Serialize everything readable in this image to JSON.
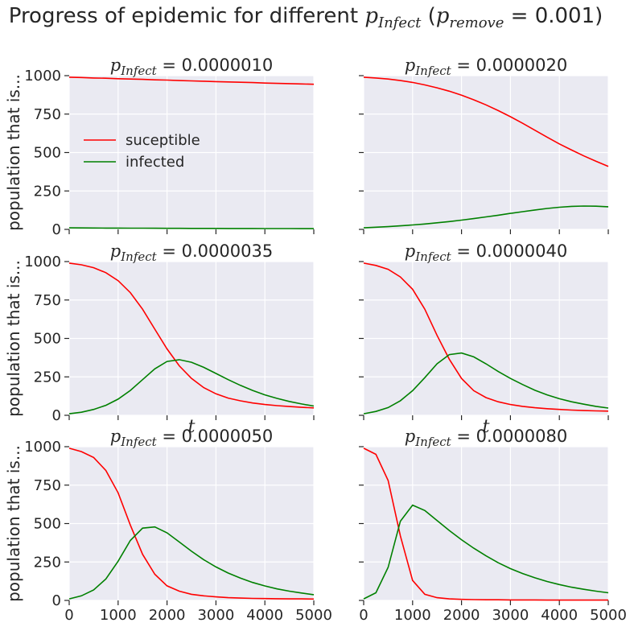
{
  "chart_data": {
    "type": "line",
    "title": {
      "prefix": "Progress of epidemic for different ",
      "var1": "p",
      "var1_sub": "Infect",
      "mid": " (",
      "var2": "p",
      "var2_sub": "remove",
      "suffix": " = 0.001)"
    },
    "xlabel": "t",
    "ylabel": "population that is...",
    "xlim": [
      0,
      5000
    ],
    "ylim": [
      0,
      1000
    ],
    "x_ticks": [
      "0",
      "1000",
      "2000",
      "3000",
      "4000",
      "5000"
    ],
    "y_ticks": [
      "0",
      "250",
      "500",
      "750",
      "1000"
    ],
    "grid": true,
    "legend": {
      "placement": "upper-left of top-left panel",
      "entries": [
        "suceptible",
        "infected"
      ]
    },
    "colors": {
      "suceptible": "#ff0000",
      "infected": "#008000",
      "background": "#eaeaf2",
      "grid": "#ffffff"
    },
    "x": [
      0,
      250,
      500,
      750,
      1000,
      1250,
      1500,
      1750,
      2000,
      2250,
      2500,
      2750,
      3000,
      3250,
      3500,
      3750,
      4000,
      4250,
      4500,
      4750,
      5000
    ],
    "panels": [
      {
        "var": "p",
        "sub": "Infect",
        "value": " = 0.0000010",
        "series": [
          {
            "name": "suceptible",
            "values": [
              990,
              988,
              985,
              983,
              980,
              978,
              976,
              973,
              971,
              968,
              966,
              964,
              961,
              959,
              957,
              955,
              952,
              950,
              948,
              946,
              944
            ]
          },
          {
            "name": "infected",
            "values": [
              10,
              9.5,
              9,
              8.6,
              8.2,
              7.9,
              7.6,
              7.3,
              7.0,
              6.7,
              6.5,
              6.3,
              6.1,
              5.9,
              5.7,
              5.5,
              5.3,
              5.1,
              5.0,
              4.8,
              4.6
            ]
          }
        ]
      },
      {
        "var": "p",
        "sub": "Infect",
        "value": " = 0.0000020",
        "series": [
          {
            "name": "suceptible",
            "values": [
              990,
              985,
              978,
              968,
              956,
              940,
              921,
              899,
              873,
              843,
              810,
              773,
              733,
              690,
              645,
              600,
              556,
              516,
              478,
              443,
              410
            ]
          },
          {
            "name": "infected",
            "values": [
              10,
              14,
              18,
              23,
              29,
              35,
              43,
              51,
              60,
              70,
              81,
              92,
              104,
              115,
              126,
              136,
              144,
              150,
              152,
              151,
              147
            ]
          }
        ]
      },
      {
        "var": "p",
        "sub": "Infect",
        "value": " = 0.0000035",
        "series": [
          {
            "name": "suceptible",
            "values": [
              990,
              979,
              960,
              928,
              876,
              798,
              690,
              560,
              432,
              322,
              240,
              180,
              140,
              112,
              94,
              80,
              70,
              63,
              57,
              52,
              48
            ]
          },
          {
            "name": "infected",
            "values": [
              10,
              20,
              38,
              65,
              105,
              162,
              232,
              302,
              350,
              362,
              345,
              312,
              272,
              232,
              195,
              162,
              133,
              110,
              90,
              74,
              60
            ]
          }
        ]
      },
      {
        "var": "p",
        "sub": "Infect",
        "value": " = 0.0000040",
        "series": [
          {
            "name": "suceptible",
            "values": [
              990,
              975,
              950,
              900,
              820,
              690,
              520,
              365,
              240,
              160,
              115,
              88,
              70,
              58,
              49,
              43,
              38,
              34,
              31,
              29,
              27
            ]
          },
          {
            "name": "infected",
            "values": [
              10,
              25,
              50,
              95,
              160,
              245,
              335,
              395,
              405,
              380,
              335,
              285,
              240,
              200,
              163,
              133,
              108,
              88,
              72,
              58,
              47
            ]
          }
        ]
      },
      {
        "var": "p",
        "sub": "Infect",
        "value": " = 0.0000050",
        "series": [
          {
            "name": "suceptible",
            "values": [
              990,
              968,
              930,
              845,
              700,
              490,
              300,
              170,
              95,
              60,
              40,
              30,
              23,
              18,
              15,
              13,
              12,
              11,
              10,
              10,
              9
            ]
          },
          {
            "name": "infected",
            "values": [
              10,
              30,
              68,
              140,
              255,
              390,
              470,
              478,
              440,
              380,
              320,
              265,
              218,
              178,
              145,
              117,
              94,
              75,
              60,
              48,
              37
            ]
          }
        ]
      },
      {
        "var": "p",
        "sub": "Infect",
        "value": " = 0.0000080",
        "series": [
          {
            "name": "suceptible",
            "values": [
              990,
              950,
              780,
              420,
              130,
              40,
              18,
              10,
              7,
              5,
              4,
              4,
              3,
              3,
              3,
              2,
              2,
              2,
              2,
              2,
              2
            ]
          },
          {
            "name": "infected",
            "values": [
              10,
              50,
              215,
              515,
              620,
              585,
              520,
              455,
              395,
              340,
              290,
              245,
              207,
              175,
              147,
              123,
              103,
              86,
              72,
              60,
              50
            ]
          }
        ]
      }
    ]
  }
}
